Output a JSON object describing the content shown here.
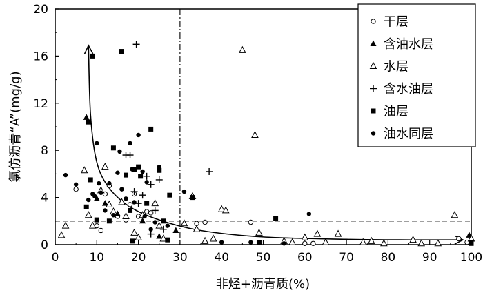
{
  "chart_data": {
    "type": "scatter",
    "xlabel": "非烃+沥青质(%)",
    "ylabel": "氯仿沥青“A”(mg/g)",
    "xlim": [
      0,
      100
    ],
    "ylim": [
      0,
      20
    ],
    "xticks": [
      "0",
      "10",
      "20",
      "30",
      "40",
      "50",
      "60",
      "70",
      "80",
      "90",
      "100"
    ],
    "yticks": [
      "0",
      "4",
      "8",
      "12",
      "16",
      "20"
    ],
    "grid": false,
    "legend_position": "top-right",
    "reference_lines": [
      {
        "orientation": "vertical",
        "value": 30,
        "style": "dash-dot"
      },
      {
        "orientation": "horizontal",
        "value": 2,
        "style": "dashed"
      }
    ],
    "trend_curve": [
      [
        8,
        16.9
      ],
      [
        8.5,
        11
      ],
      [
        10,
        7
      ],
      [
        13,
        4.8
      ],
      [
        18,
        3.2
      ],
      [
        25,
        2.1
      ],
      [
        35,
        1.2
      ],
      [
        50,
        0.65
      ],
      [
        70,
        0.45
      ],
      [
        85,
        0.4
      ],
      [
        98,
        0.4
      ]
    ],
    "series": [
      {
        "name": "干层",
        "marker": "open-circle",
        "points": [
          [
            5,
            4.7
          ],
          [
            10,
            1.6
          ],
          [
            11,
            1.2
          ],
          [
            12,
            4.3
          ],
          [
            13,
            5
          ],
          [
            15,
            2.4
          ],
          [
            17,
            2.1
          ],
          [
            18,
            3.4
          ],
          [
            19,
            4.3
          ],
          [
            20,
            2.4
          ],
          [
            22,
            2.8
          ],
          [
            23,
            2.7
          ],
          [
            34,
            1.8
          ],
          [
            36,
            1.9
          ],
          [
            47,
            1.9
          ],
          [
            60,
            0.1
          ],
          [
            62,
            0.1
          ],
          [
            97,
            0.5
          ],
          [
            99,
            0.2
          ]
        ]
      },
      {
        "name": "含油水层",
        "marker": "filled-triangle",
        "points": [
          [
            7.5,
            10.8
          ],
          [
            10,
            3.9
          ],
          [
            12,
            3.5
          ],
          [
            15,
            2.6
          ],
          [
            21,
            2
          ],
          [
            25,
            0.7
          ],
          [
            29,
            1.2
          ],
          [
            99.5,
            0.8
          ]
        ]
      },
      {
        "name": "水层",
        "marker": "open-triangle",
        "points": [
          [
            1.5,
            0.8
          ],
          [
            2.5,
            1.6
          ],
          [
            7,
            6.3
          ],
          [
            8,
            2.5
          ],
          [
            9,
            1.6
          ],
          [
            11,
            4.6
          ],
          [
            12,
            6.6
          ],
          [
            13,
            3.4
          ],
          [
            14,
            2.8
          ],
          [
            16,
            3.6
          ],
          [
            17,
            2.4
          ],
          [
            19,
            1
          ],
          [
            20,
            0.6
          ],
          [
            21,
            2.5
          ],
          [
            24,
            3.5
          ],
          [
            25,
            1.6
          ],
          [
            26,
            0.5
          ],
          [
            31,
            1.8
          ],
          [
            33,
            4.1
          ],
          [
            34,
            1.3
          ],
          [
            36,
            0.3
          ],
          [
            38,
            0.5
          ],
          [
            40,
            3
          ],
          [
            41,
            2.9
          ],
          [
            45,
            16.5
          ],
          [
            48,
            9.3
          ],
          [
            49,
            1
          ],
          [
            55,
            0.3
          ],
          [
            57,
            0.2
          ],
          [
            60,
            0.6
          ],
          [
            63,
            0.9
          ],
          [
            65,
            0.2
          ],
          [
            68,
            0.9
          ],
          [
            74,
            0.2
          ],
          [
            76,
            0.3
          ],
          [
            79,
            0.1
          ],
          [
            86,
            0.4
          ],
          [
            88,
            0.1
          ],
          [
            92,
            0.1
          ],
          [
            96,
            2.5
          ],
          [
            100,
            0.5
          ]
        ]
      },
      {
        "name": "含水油层",
        "marker": "plus",
        "points": [
          [
            17,
            7.6
          ],
          [
            18,
            7.6
          ],
          [
            19,
            4.5
          ],
          [
            19.5,
            17
          ],
          [
            20,
            3.5
          ],
          [
            21,
            4.2
          ],
          [
            22,
            5.8
          ],
          [
            23,
            5.1
          ],
          [
            23,
            0.9
          ],
          [
            24,
            2.9
          ],
          [
            25,
            5.5
          ],
          [
            26,
            1.3
          ],
          [
            37,
            6.2
          ]
        ]
      },
      {
        "name": "油层",
        "marker": "filled-square",
        "points": [
          [
            7.5,
            3.2
          ],
          [
            8,
            10.4
          ],
          [
            8.5,
            5.5
          ],
          [
            9,
            16
          ],
          [
            10,
            2.1
          ],
          [
            13,
            2
          ],
          [
            14,
            8.2
          ],
          [
            16,
            16.4
          ],
          [
            17,
            5.9
          ],
          [
            18,
            2.9
          ],
          [
            18.5,
            0.3
          ],
          [
            19,
            6.4
          ],
          [
            20,
            6.6
          ],
          [
            20.5,
            5.8
          ],
          [
            22,
            3.5
          ],
          [
            23,
            9.8
          ],
          [
            25,
            6.3
          ],
          [
            26,
            2
          ],
          [
            27,
            0.4
          ],
          [
            27.5,
            4.2
          ],
          [
            33,
            4
          ],
          [
            49,
            0.2
          ],
          [
            53,
            2.2
          ],
          [
            100,
            0.2
          ],
          [
            100,
            0.1
          ]
        ]
      },
      {
        "name": "油水同层",
        "marker": "filled-circle",
        "points": [
          [
            2.5,
            5.9
          ],
          [
            5,
            5.1
          ],
          [
            8,
            3.8
          ],
          [
            9,
            4.3
          ],
          [
            9.5,
            4.1
          ],
          [
            10,
            8.6
          ],
          [
            10.5,
            5.2
          ],
          [
            11,
            4.4
          ],
          [
            12,
            2.9
          ],
          [
            13,
            5.2
          ],
          [
            14,
            2.5
          ],
          [
            15,
            6.1
          ],
          [
            15.5,
            7.9
          ],
          [
            16,
            4.7
          ],
          [
            17,
            3.9
          ],
          [
            18,
            8.6
          ],
          [
            18.5,
            6.4
          ],
          [
            19,
            3.6
          ],
          [
            20,
            9.3
          ],
          [
            21,
            6.2
          ],
          [
            21.5,
            2.4
          ],
          [
            22,
            5.3
          ],
          [
            23,
            1.3
          ],
          [
            24,
            1.9
          ],
          [
            25,
            6.6
          ],
          [
            27,
            1.6
          ],
          [
            31,
            4.5
          ],
          [
            40,
            0.2
          ],
          [
            47,
            0.2
          ],
          [
            55,
            0.1
          ],
          [
            61,
            2.6
          ]
        ]
      }
    ]
  }
}
